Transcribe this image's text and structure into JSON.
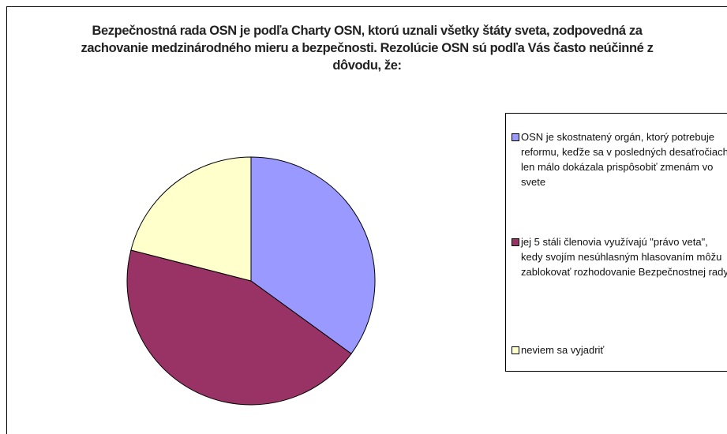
{
  "chart_data": {
    "type": "pie",
    "title": "Bezpečnostná rada OSN je podľa Charty OSN, ktorú uznali všetky štáty sveta, zodpovedná za zachovanie medzinárodného mieru a bezpečnosti. Rezolúcie OSN sú podľa Vás často neúčinné z dôvodu, že:",
    "categories": [
      "OSN je skostnatený orgán, ktorý potrebuje reformu, keďže sa v posledných desaťročiach len málo dokázala prispôsobiť zmenám vo svete",
      "jej 5 stáli členovia využívajú \"právo veta\", kedy svojím nesúhlasným hlasovaním môžu zablokovať rozhodovanie Bezpečnostnej rady",
      "neviem sa vyjadriť"
    ],
    "values": [
      35,
      44,
      21
    ],
    "colors": [
      "#9999ff",
      "#993366",
      "#ffffcc"
    ],
    "legend": "right"
  }
}
